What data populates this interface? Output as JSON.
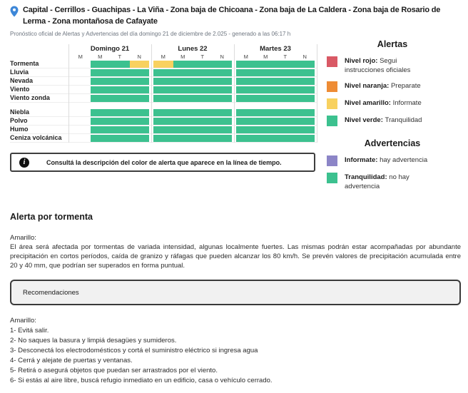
{
  "colors": {
    "green": "#3cc18f",
    "yellow": "#f8d15f",
    "red": "#d95965",
    "orange": "#ee8c35",
    "purple": "#8c85c7",
    "pin_blue": "#3d87d8",
    "grid_line": "#dcdcdc"
  },
  "icons": {
    "location": "location-pin-icon",
    "info": "info-icon"
  },
  "header": {
    "title": "Capital - Cerrillos - Guachipas - La Viña - Zona baja de Chicoana - Zona baja de La Caldera - Zona baja de Rosario de Lerma - Zona montañosa de Cafayate",
    "subtitle": "Pronóstico oficial de Alertas y Advertencias del día domingo 21 de diciembre de 2.025 - generado a las 06:17 h"
  },
  "timeline": {
    "days": [
      {
        "label": "Domingo 21",
        "slots": [
          "M",
          "M",
          "T",
          "N"
        ]
      },
      {
        "label": "Lunes 22",
        "slots": [
          "M",
          "M",
          "T",
          "N"
        ]
      },
      {
        "label": "Martes 23",
        "slots": [
          "M",
          "M",
          "T",
          "N"
        ]
      }
    ],
    "groups": [
      {
        "rows": [
          {
            "label": "Tormenta",
            "cells": [
              [
                "none",
                "green",
                "green",
                "yellow"
              ],
              [
                "yellow",
                "green",
                "green",
                "green"
              ],
              [
                "green",
                "green",
                "green",
                "green"
              ]
            ]
          },
          {
            "label": "Lluvia",
            "cells": [
              [
                "none",
                "green",
                "green",
                "green"
              ],
              [
                "green",
                "green",
                "green",
                "green"
              ],
              [
                "green",
                "green",
                "green",
                "green"
              ]
            ]
          },
          {
            "label": "Nevada",
            "cells": [
              [
                "none",
                "green",
                "green",
                "green"
              ],
              [
                "green",
                "green",
                "green",
                "green"
              ],
              [
                "green",
                "green",
                "green",
                "green"
              ]
            ]
          },
          {
            "label": "Viento",
            "cells": [
              [
                "none",
                "green",
                "green",
                "green"
              ],
              [
                "green",
                "green",
                "green",
                "green"
              ],
              [
                "green",
                "green",
                "green",
                "green"
              ]
            ]
          },
          {
            "label": "Viento zonda",
            "cells": [
              [
                "none",
                "green",
                "green",
                "green"
              ],
              [
                "green",
                "green",
                "green",
                "green"
              ],
              [
                "green",
                "green",
                "green",
                "green"
              ]
            ]
          }
        ]
      },
      {
        "rows": [
          {
            "label": "Niebla",
            "cells": [
              [
                "none",
                "green",
                "green",
                "green"
              ],
              [
                "green",
                "green",
                "green",
                "green"
              ],
              [
                "green",
                "green",
                "green",
                "green"
              ]
            ]
          },
          {
            "label": "Polvo",
            "cells": [
              [
                "none",
                "green",
                "green",
                "green"
              ],
              [
                "green",
                "green",
                "green",
                "green"
              ],
              [
                "green",
                "green",
                "green",
                "green"
              ]
            ]
          },
          {
            "label": "Humo",
            "cells": [
              [
                "none",
                "green",
                "green",
                "green"
              ],
              [
                "green",
                "green",
                "green",
                "green"
              ],
              [
                "green",
                "green",
                "green",
                "green"
              ]
            ]
          },
          {
            "label": "Ceniza volcánica",
            "cells": [
              [
                "none",
                "green",
                "green",
                "green"
              ],
              [
                "green",
                "green",
                "green",
                "green"
              ],
              [
                "green",
                "green",
                "green",
                "green"
              ]
            ]
          }
        ]
      }
    ]
  },
  "legend": {
    "alerts_title": "Alertas",
    "alerts": [
      {
        "color": "#d95965",
        "label": "Nivel rojo:",
        "text": "Segui instrucciones oficiales"
      },
      {
        "color": "#ee8c35",
        "label": "Nivel naranja:",
        "text": "Preparate"
      },
      {
        "color": "#f8d15f",
        "label": "Nivel amarillo:",
        "text": "Informate"
      },
      {
        "color": "#3cc18f",
        "label": "Nivel verde:",
        "text": "Tranquilidad"
      }
    ],
    "warnings_title": "Advertencias",
    "warnings": [
      {
        "color": "#8c85c7",
        "label": "Informate:",
        "text": "hay advertencia"
      },
      {
        "color": "#3cc18f",
        "label": "Tranquilidad:",
        "text": "no hay advertencia"
      }
    ]
  },
  "info_box": {
    "text": "Consultá la descripción del color de alerta que aparece en la línea de tiempo."
  },
  "alert_section": {
    "title": "Alerta por tormenta",
    "level_label": "Amarillo:",
    "description": "El área será afectada por tormentas de variada intensidad, algunas localmente fuertes. Las mismas podrán estar acompañadas por abundante precipitación en cortos períodos, caída de granizo y ráfagas que pueden alcanzar los 80 km/h. Se prevén valores de precipitación acumulada entre 20 y 40 mm, que podrían ser superados en forma puntual.",
    "recommendations_title": "Recomendaciones",
    "recommendations_level": "Amarillo:",
    "recommendations": [
      "1- Evitá salir.",
      "2- No saques la basura y limpiá desagües y sumideros.",
      "3- Desconectá los electrodomésticos y cortá el suministro eléctrico si ingresa agua",
      "4- Cerrá y alejate de puertas y ventanas.",
      "5- Retirá o asegurá objetos que puedan ser arrastrados por el viento.",
      "6- Si estás al aire libre, buscá refugio inmediato en un edificio, casa o vehículo cerrado."
    ]
  }
}
